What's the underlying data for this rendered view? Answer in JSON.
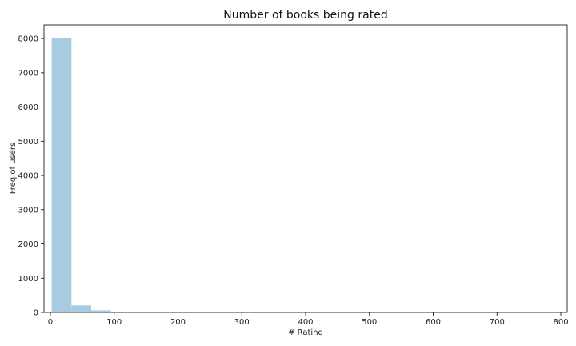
{
  "chart_data": {
    "type": "bar",
    "title": "Number of books being rated",
    "xlabel": "# Rating",
    "ylabel": "Freq of users",
    "xlim": [
      -10,
      810
    ],
    "ylim": [
      0,
      8400
    ],
    "xticks": [
      0,
      100,
      200,
      300,
      400,
      500,
      600,
      700,
      800
    ],
    "yticks": [
      0,
      1000,
      2000,
      3000,
      4000,
      5000,
      6000,
      7000,
      8000
    ],
    "bin_width": 31,
    "bins": [
      {
        "start": 2,
        "end": 33,
        "value": 8020
      },
      {
        "start": 33,
        "end": 64,
        "value": 205
      },
      {
        "start": 64,
        "end": 95,
        "value": 60
      },
      {
        "start": 95,
        "end": 126,
        "value": 18
      },
      {
        "start": 126,
        "end": 157,
        "value": 5
      },
      {
        "start": 157,
        "end": 188,
        "value": 2
      }
    ],
    "colors": {
      "bar": "#a7cbe1",
      "axis": "#000000"
    },
    "grid": false
  }
}
